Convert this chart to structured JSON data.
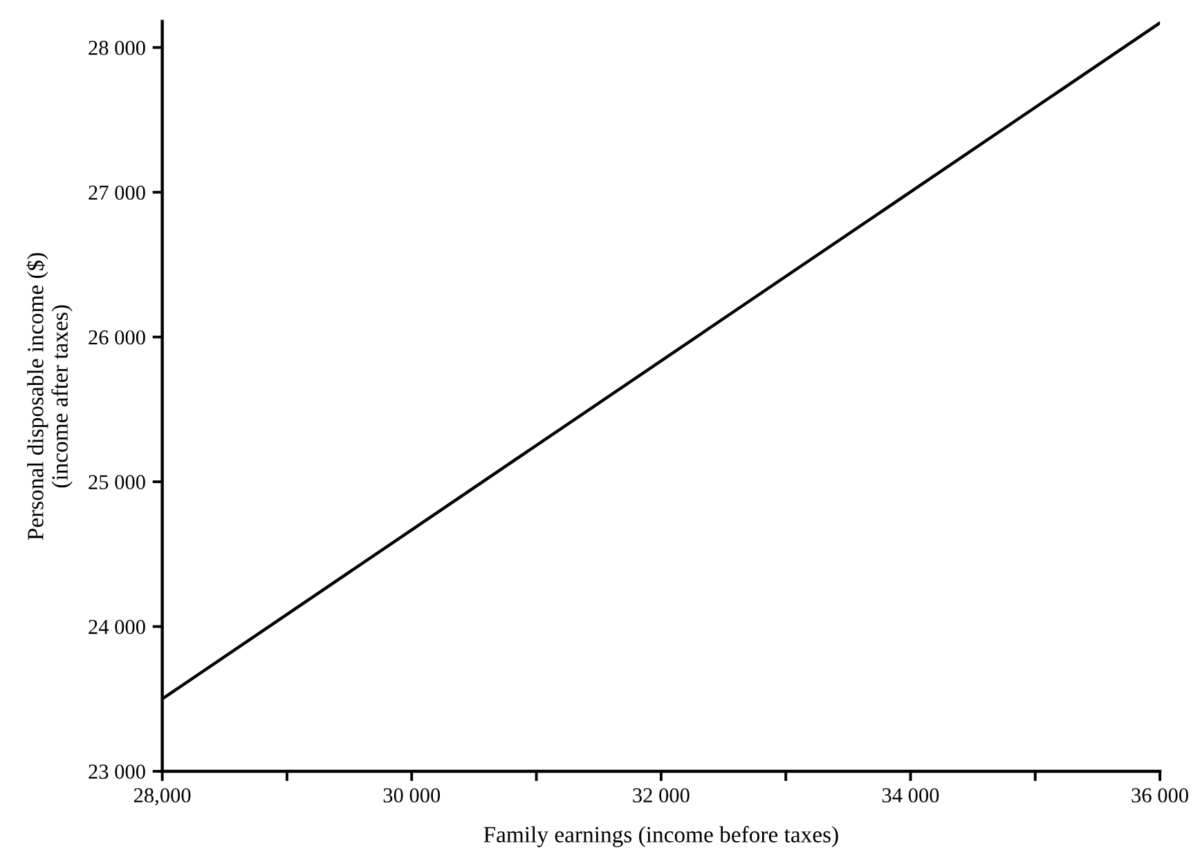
{
  "chart_data": {
    "type": "line",
    "xlabel": "Family earnings (income before taxes)",
    "ylabel": "Personal disposable income ($)\n(income after taxes)",
    "x": [
      28000,
      36000
    ],
    "series": [
      {
        "color": "#000000",
        "values": [
          23500,
          28170
        ]
      }
    ],
    "xlim": [
      28000,
      36000
    ],
    "ylim": [
      23000,
      28180
    ],
    "xticks": [
      {
        "value": 28000,
        "label": "28,000"
      },
      {
        "value": 29000,
        "label": null
      },
      {
        "value": 30000,
        "label": "30 000"
      },
      {
        "value": 31000,
        "label": null
      },
      {
        "value": 32000,
        "label": "32 000"
      },
      {
        "value": 33000,
        "label": null
      },
      {
        "value": 34000,
        "label": "34 000"
      },
      {
        "value": 35000,
        "label": null
      },
      {
        "value": 36000,
        "label": "36 000"
      }
    ],
    "yticks": [
      {
        "value": 23000,
        "label": "23 000"
      },
      {
        "value": 24000,
        "label": "24 000"
      },
      {
        "value": 25000,
        "label": "25 000"
      },
      {
        "value": 26000,
        "label": "26 000"
      },
      {
        "value": 27000,
        "label": "27 000"
      },
      {
        "value": 28000,
        "label": "28 000"
      }
    ],
    "grid": false,
    "legend": false,
    "line_style": "solid",
    "marker": "none"
  }
}
